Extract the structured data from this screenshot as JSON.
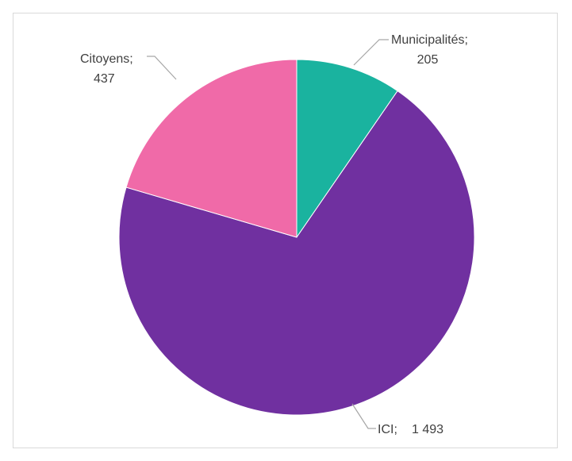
{
  "chart_data": {
    "type": "pie",
    "title": "",
    "categories": [
      "Municipalités",
      "ICI",
      "Citoyens"
    ],
    "values": [
      205,
      1493,
      437
    ],
    "colors": [
      "#1ab39f",
      "#7030a0",
      "#f06aa8"
    ],
    "legend": "none",
    "data_labels": [
      {
        "name": "Municipalités;",
        "value": "205"
      },
      {
        "name": "ICI;",
        "value": "1 493"
      },
      {
        "name": "Citoyens;",
        "value": "437"
      }
    ]
  }
}
